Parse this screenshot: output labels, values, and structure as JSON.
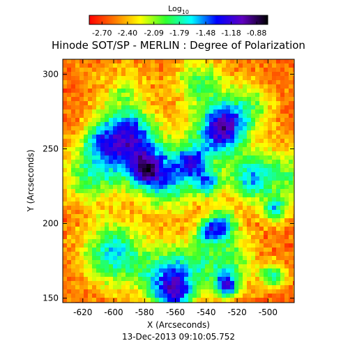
{
  "chart_data": {
    "type": "heatmap",
    "title": "Hinode SOT/SP - MERLIN : Degree of Polarization",
    "xlabel": "X (Arcseconds)",
    "ylabel": "Y (Arcseconds)",
    "xlim": [
      -633,
      -483
    ],
    "ylim": [
      147,
      310
    ],
    "x_ticks": [
      -620,
      -600,
      -580,
      -560,
      -540,
      -520,
      -500
    ],
    "x_tick_labels": [
      "-620",
      "-600",
      "-580",
      "-560",
      "-540",
      "-520",
      "-500"
    ],
    "y_ticks": [
      150,
      200,
      250,
      300
    ],
    "y_tick_labels": [
      "150",
      "200",
      "250",
      "300"
    ],
    "colorbar": {
      "label_base": "Log",
      "label_sub": "10",
      "orientation": "horizontal",
      "placement": "top",
      "range": [
        -2.85,
        -0.75
      ],
      "tick_values": [
        -2.7,
        -2.4,
        -2.09,
        -1.79,
        -1.48,
        -1.18,
        -0.88
      ],
      "tick_labels": [
        "-2.70",
        "-2.40",
        "-2.09",
        "-1.79",
        "-1.48",
        "-1.18",
        "-0.88"
      ],
      "colormap": [
        "#ff0000",
        "#ff7a00",
        "#ffff00",
        "#30ff30",
        "#00ffff",
        "#0000ff",
        "#6000c0",
        "#000000"
      ]
    },
    "grid": false
  },
  "footer": {
    "timestamp": "13-Dec-2013 09:10:05.752"
  }
}
